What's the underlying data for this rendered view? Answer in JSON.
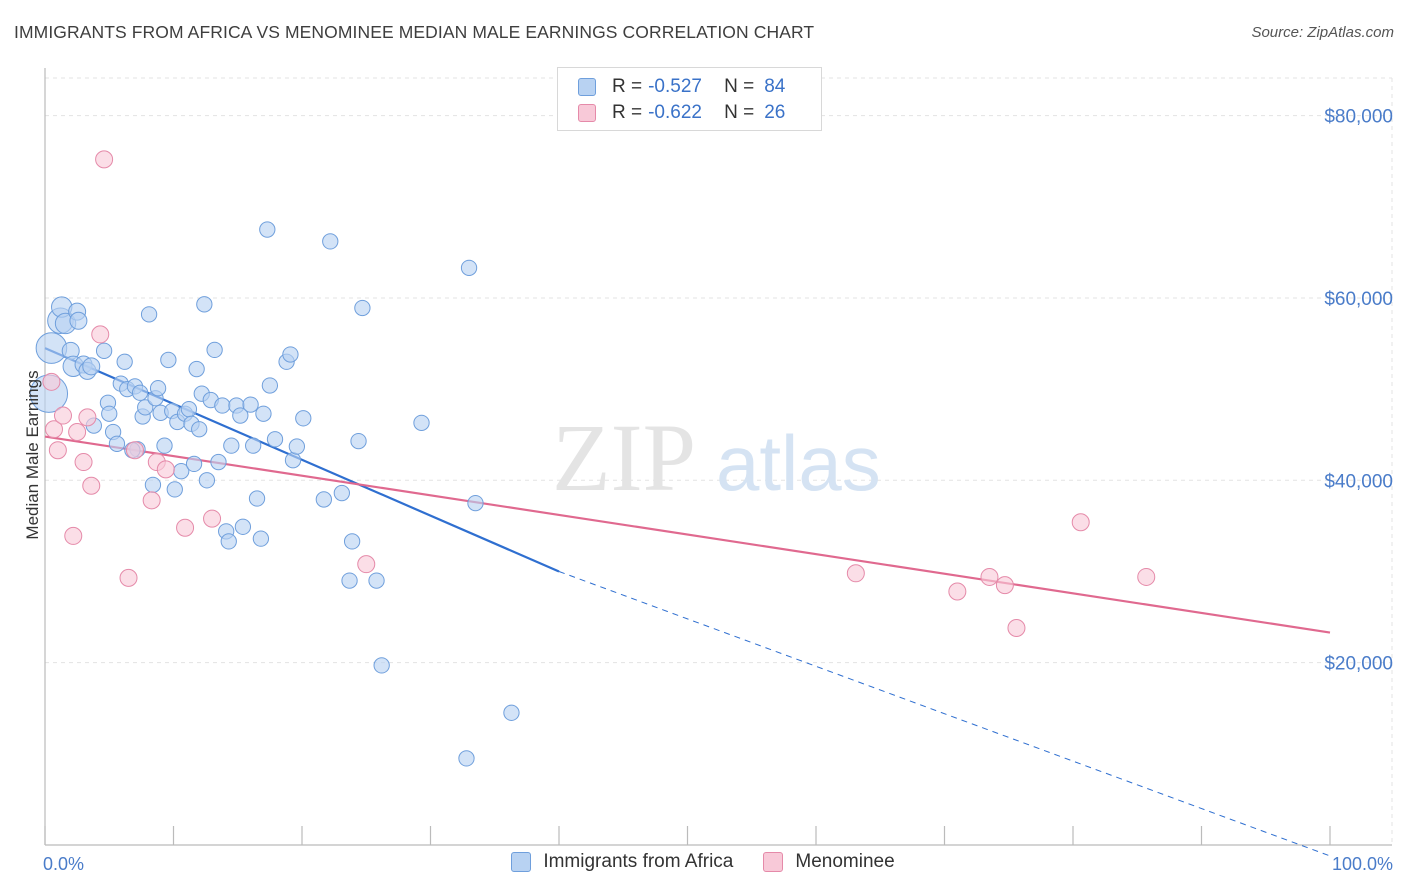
{
  "title": "IMMIGRANTS FROM AFRICA VS MENOMINEE MEDIAN MALE EARNINGS CORRELATION CHART",
  "source": "Source: ZipAtlas.com",
  "watermark": {
    "zip": "ZIP",
    "atlas": "atlas"
  },
  "legend": {
    "rows": [
      {
        "r_label": "R =",
        "r_value": "-0.527",
        "n_label": "N =",
        "n_value": "84"
      },
      {
        "r_label": "R =",
        "r_value": "-0.622",
        "n_label": "N =",
        "n_value": "26"
      }
    ]
  },
  "bottom_legend": {
    "series1": "Immigrants from Africa",
    "series2": "Menominee"
  },
  "colors": {
    "blue_fill": "#b8d2f2",
    "blue_stroke": "#6f9fdc",
    "blue_line": "#2f6fd0",
    "pink_fill": "#f8c9d8",
    "pink_stroke": "#e58aa9",
    "pink_line": "#e0698f",
    "grid": "#e3e3e3",
    "axis_text": "#4a7cc9"
  },
  "chart_data": {
    "type": "scatter",
    "title": "IMMIGRANTS FROM AFRICA VS MENOMINEE MEDIAN MALE EARNINGS CORRELATION CHART",
    "xlabel": "",
    "ylabel": "Median Male Earnings",
    "xlim": [
      0,
      100
    ],
    "ylim": [
      0,
      85000
    ],
    "x_tick_labels": [
      "0.0%",
      "100.0%"
    ],
    "y_ticks": [
      20000,
      40000,
      60000,
      80000
    ],
    "y_tick_labels": [
      "$20,000",
      "$40,000",
      "$60,000",
      "$80,000"
    ],
    "grid": true,
    "legend_position": "top-center",
    "series": [
      {
        "name": "Immigrants from Africa",
        "color": "#6f9fdc",
        "r": -0.527,
        "n": 84,
        "trend": {
          "x0": 0,
          "y0": 54500,
          "x1": 40,
          "y1": 30000,
          "dashed_to_x": 100,
          "dashed_to_y": -1200
        },
        "points": [
          [
            0.3,
            49500,
            2.2
          ],
          [
            0.5,
            54500,
            1.8
          ],
          [
            1.2,
            57500,
            1.5
          ],
          [
            1.3,
            59000,
            1.2
          ],
          [
            1.6,
            57200,
            1.2
          ],
          [
            2.0,
            54200,
            1.0
          ],
          [
            2.2,
            52500,
            1.2
          ],
          [
            2.5,
            58500,
            1.0
          ],
          [
            2.6,
            57500,
            1.0
          ],
          [
            3.0,
            52700,
            1.0
          ],
          [
            3.3,
            52000,
            1.0
          ],
          [
            3.6,
            52500,
            1.0
          ],
          [
            4.6,
            54200,
            0.9
          ],
          [
            4.9,
            48500,
            0.9
          ],
          [
            5.0,
            47300,
            0.9
          ],
          [
            5.3,
            45300,
            0.9
          ],
          [
            5.6,
            44000,
            0.9
          ],
          [
            5.9,
            50600,
            0.9
          ],
          [
            6.2,
            53000,
            0.9
          ],
          [
            6.4,
            50000,
            0.9
          ],
          [
            7.0,
            50300,
            0.9
          ],
          [
            7.2,
            43400,
            0.9
          ],
          [
            7.4,
            49600,
            0.9
          ],
          [
            7.6,
            47000,
            0.9
          ],
          [
            7.8,
            48000,
            0.9
          ],
          [
            8.1,
            58200,
            0.9
          ],
          [
            8.4,
            39500,
            0.9
          ],
          [
            8.6,
            49000,
            0.9
          ],
          [
            8.8,
            50100,
            0.9
          ],
          [
            9.0,
            47400,
            0.9
          ],
          [
            9.3,
            43800,
            0.9
          ],
          [
            9.6,
            53200,
            0.9
          ],
          [
            9.9,
            47600,
            0.9
          ],
          [
            10.1,
            39000,
            0.9
          ],
          [
            10.3,
            46400,
            0.9
          ],
          [
            10.6,
            41000,
            0.9
          ],
          [
            10.9,
            47300,
            0.9
          ],
          [
            11.2,
            47800,
            0.9
          ],
          [
            11.4,
            46200,
            0.9
          ],
          [
            11.8,
            52200,
            0.9
          ],
          [
            12.0,
            45600,
            0.9
          ],
          [
            12.2,
            49500,
            0.9
          ],
          [
            12.4,
            59300,
            0.9
          ],
          [
            12.6,
            40000,
            0.9
          ],
          [
            12.9,
            48800,
            0.9
          ],
          [
            13.2,
            54300,
            0.9
          ],
          [
            13.5,
            42000,
            0.9
          ],
          [
            13.8,
            48200,
            0.9
          ],
          [
            14.1,
            34400,
            0.9
          ],
          [
            14.3,
            33300,
            0.9
          ],
          [
            14.5,
            43800,
            0.9
          ],
          [
            14.9,
            48200,
            0.9
          ],
          [
            15.2,
            47100,
            0.9
          ],
          [
            15.4,
            34900,
            0.9
          ],
          [
            16.0,
            48300,
            0.9
          ],
          [
            16.2,
            43800,
            0.9
          ],
          [
            16.5,
            38000,
            0.9
          ],
          [
            16.8,
            33600,
            0.9
          ],
          [
            17.0,
            47300,
            0.9
          ],
          [
            17.3,
            67500,
            0.9
          ],
          [
            17.5,
            50400,
            0.9
          ],
          [
            17.9,
            44500,
            0.9
          ],
          [
            18.8,
            53000,
            0.9
          ],
          [
            19.1,
            53800,
            0.9
          ],
          [
            19.3,
            42200,
            0.9
          ],
          [
            19.6,
            43700,
            0.9
          ],
          [
            20.1,
            46800,
            0.9
          ],
          [
            21.7,
            37900,
            0.9
          ],
          [
            22.2,
            66200,
            0.9
          ],
          [
            23.1,
            38600,
            0.9
          ],
          [
            23.9,
            33300,
            0.9
          ],
          [
            23.7,
            29000,
            0.9
          ],
          [
            24.4,
            44300,
            0.9
          ],
          [
            24.7,
            58900,
            0.9
          ],
          [
            25.8,
            29000,
            0.9
          ],
          [
            26.2,
            19700,
            0.9
          ],
          [
            29.3,
            46300,
            0.9
          ],
          [
            33.0,
            63300,
            0.9
          ],
          [
            33.5,
            37500,
            0.9
          ],
          [
            36.3,
            14500,
            0.9
          ],
          [
            32.8,
            9500,
            0.9
          ],
          [
            11.6,
            41800,
            0.9
          ],
          [
            6.8,
            43300,
            0.9
          ],
          [
            3.8,
            46000,
            0.9
          ]
        ]
      },
      {
        "name": "Menominee",
        "color": "#e58aa9",
        "r": -0.622,
        "n": 26,
        "trend": {
          "x0": 0,
          "y0": 44800,
          "x1": 100,
          "y1": 23300
        },
        "points": [
          [
            0.5,
            50800,
            1.0
          ],
          [
            0.7,
            45600,
            1.0
          ],
          [
            1.0,
            43300,
            1.0
          ],
          [
            1.4,
            47100,
            1.0
          ],
          [
            2.2,
            33900,
            1.0
          ],
          [
            2.5,
            45300,
            1.0
          ],
          [
            3.0,
            42000,
            1.0
          ],
          [
            3.3,
            46900,
            1.0
          ],
          [
            3.6,
            39400,
            1.0
          ],
          [
            4.3,
            56000,
            1.0
          ],
          [
            4.6,
            75200,
            1.0
          ],
          [
            6.5,
            29300,
            1.0
          ],
          [
            7.0,
            43300,
            1.0
          ],
          [
            8.3,
            37800,
            1.0
          ],
          [
            8.7,
            42000,
            1.0
          ],
          [
            9.4,
            41200,
            1.0
          ],
          [
            10.9,
            34800,
            1.0
          ],
          [
            13.0,
            35800,
            1.0
          ],
          [
            25.0,
            30800,
            1.0
          ],
          [
            63.1,
            29800,
            1.0
          ],
          [
            71.0,
            27800,
            1.0
          ],
          [
            73.5,
            29400,
            1.0
          ],
          [
            74.7,
            28500,
            1.0
          ],
          [
            75.6,
            23800,
            1.0
          ],
          [
            80.6,
            35400,
            1.0
          ],
          [
            85.7,
            29400,
            1.0
          ]
        ]
      }
    ]
  }
}
